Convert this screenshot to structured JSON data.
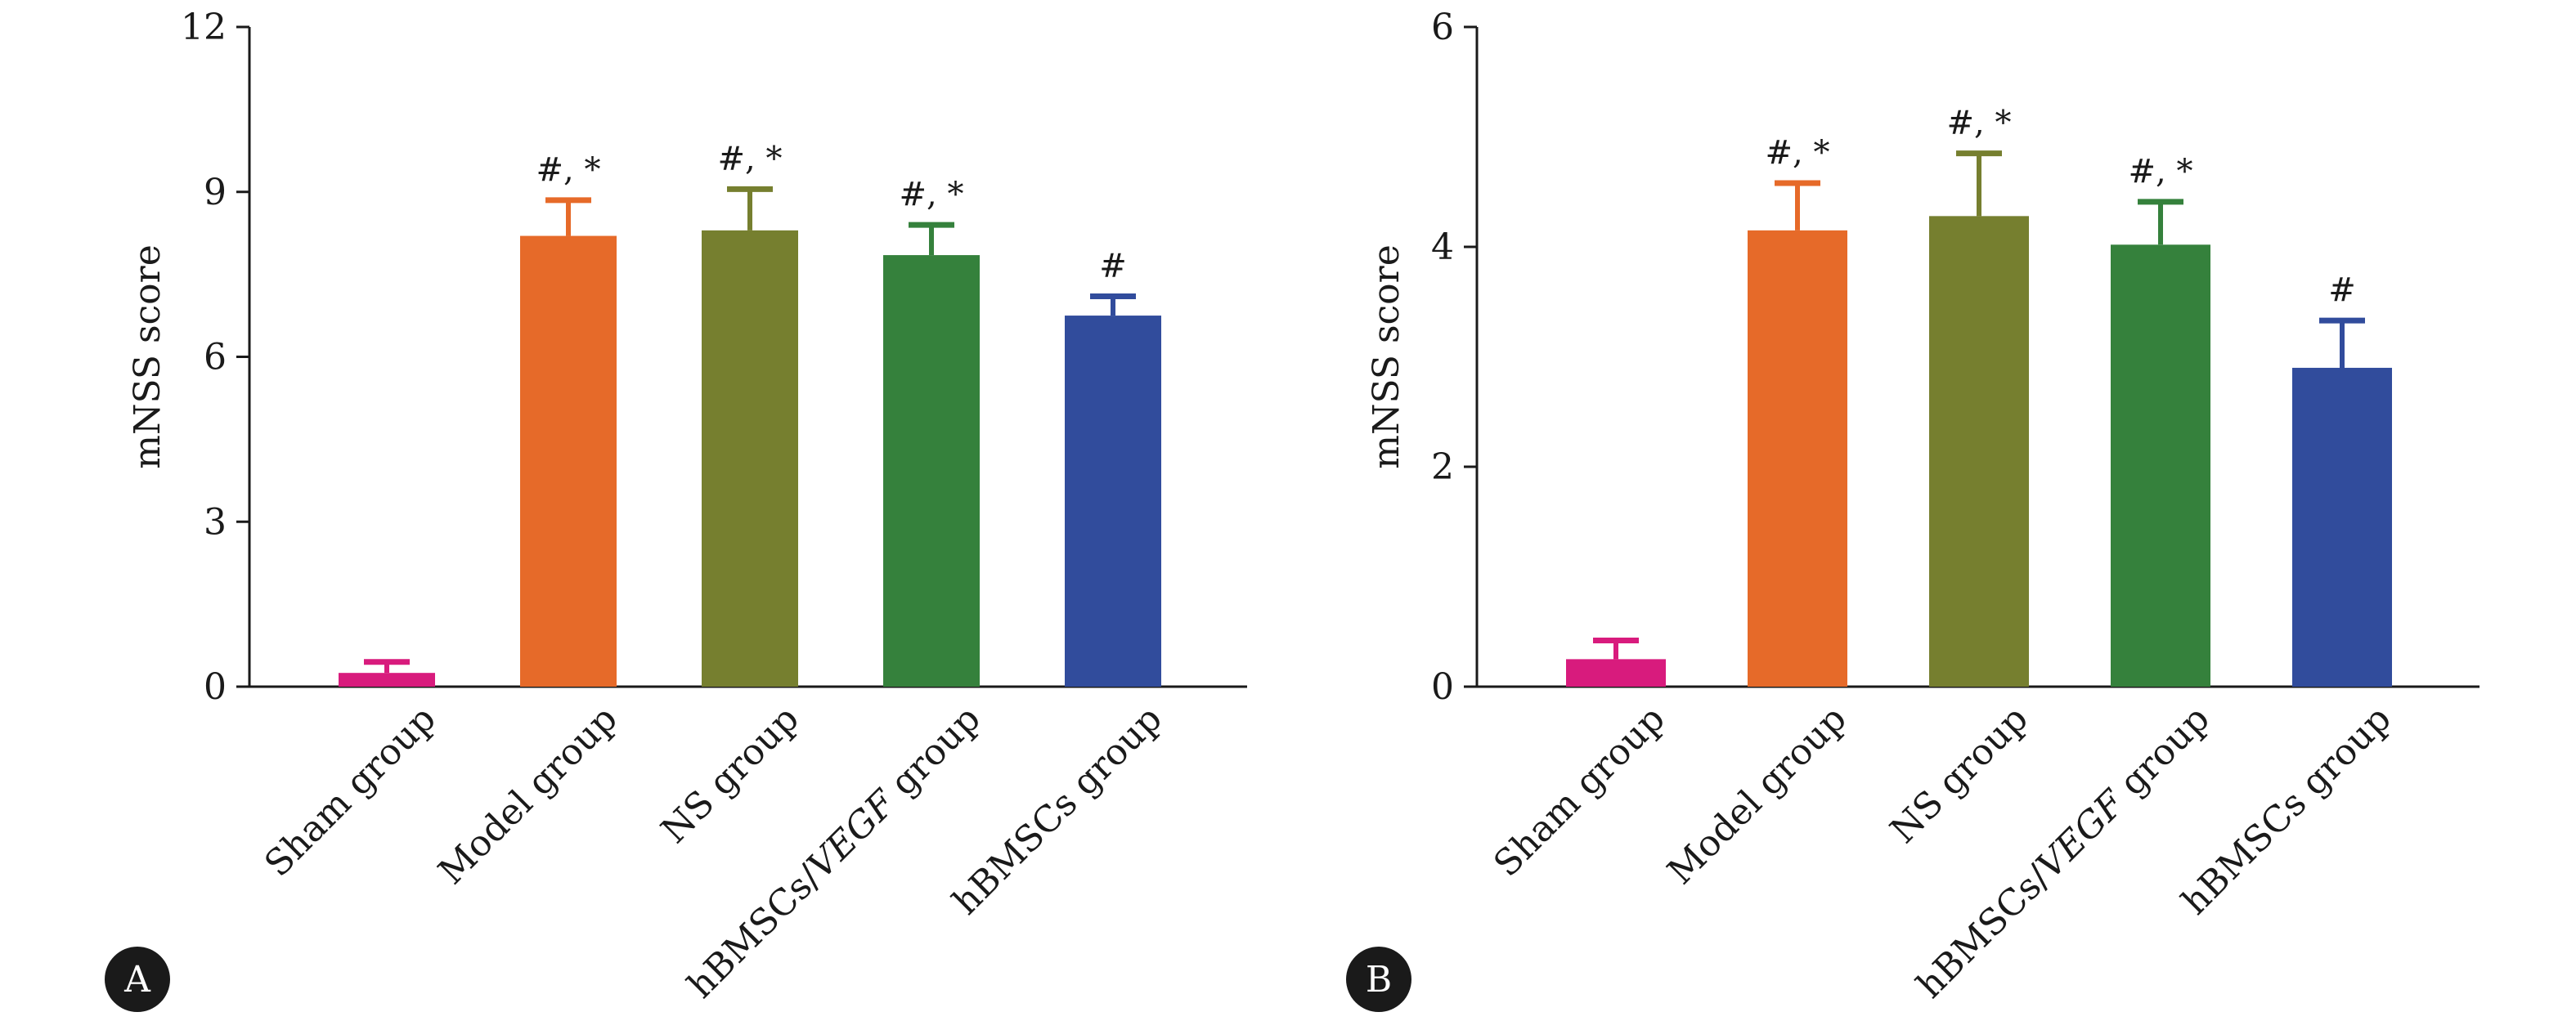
{
  "colors": {
    "Sham group": "#d81b7d",
    "Model group": "#e66a29",
    "NS group": "#767f2f",
    "hBMSCs/VEGF group": "#35813c",
    "hBMSCs group": "#314c9c",
    "axis": "#1a1a1a",
    "badge": "#1a1a1a"
  },
  "chart_data": [
    {
      "type": "bar",
      "panel_label": "A",
      "ylabel": "mNSS score",
      "ylim": [
        0,
        12
      ],
      "yticks": [
        0,
        3,
        6,
        9,
        12
      ],
      "categories": [
        {
          "parts": [
            {
              "text": "Sham group",
              "italic": false
            }
          ]
        },
        {
          "parts": [
            {
              "text": "Model group",
              "italic": false
            }
          ]
        },
        {
          "parts": [
            {
              "text": "NS group",
              "italic": false
            }
          ]
        },
        {
          "parts": [
            {
              "text": "hBMSCs/",
              "italic": false
            },
            {
              "text": "VEGF",
              "italic": true
            },
            {
              "text": " group",
              "italic": false
            }
          ]
        },
        {
          "parts": [
            {
              "text": "hBMSCs group",
              "italic": false
            }
          ]
        }
      ],
      "series": [
        {
          "values": [
            0.25,
            8.2,
            8.3,
            7.85,
            6.75
          ],
          "errors": [
            0.2,
            0.65,
            0.75,
            0.55,
            0.35
          ],
          "annotations": [
            "",
            "#, *",
            "#, *",
            "#, *",
            "#"
          ]
        }
      ]
    },
    {
      "type": "bar",
      "panel_label": "B",
      "ylabel": "mNSS score",
      "ylim": [
        0,
        6
      ],
      "yticks": [
        0,
        2,
        4,
        6
      ],
      "categories": [
        {
          "parts": [
            {
              "text": "Sham group",
              "italic": false
            }
          ]
        },
        {
          "parts": [
            {
              "text": "Model group",
              "italic": false
            }
          ]
        },
        {
          "parts": [
            {
              "text": "NS group",
              "italic": false
            }
          ]
        },
        {
          "parts": [
            {
              "text": "hBMSCs/",
              "italic": false
            },
            {
              "text": "VEGF",
              "italic": true
            },
            {
              "text": " group",
              "italic": false
            }
          ]
        },
        {
          "parts": [
            {
              "text": "hBMSCs group",
              "italic": false
            }
          ]
        }
      ],
      "series": [
        {
          "values": [
            0.25,
            4.15,
            4.28,
            4.02,
            2.9
          ],
          "errors": [
            0.17,
            0.43,
            0.57,
            0.39,
            0.43
          ],
          "annotations": [
            "",
            "#, *",
            "#, *",
            "#, *",
            "#"
          ]
        }
      ]
    }
  ]
}
